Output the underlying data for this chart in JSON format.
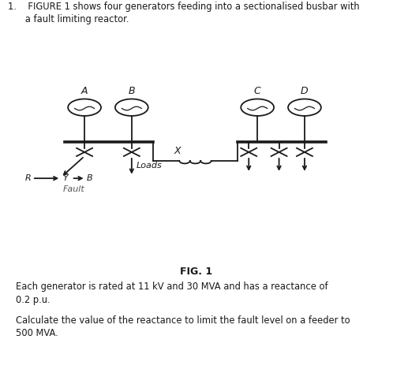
{
  "title": "FIG. 1",
  "line1": "1.    FIGURE 1 shows four generators feeding into a sectionalised busbar with",
  "line2": "      a fault limiting reactor.",
  "bottom_text1": "Each generator is rated at 11 kV and 30 MVA and has a reactance of",
  "bottom_text2": "0.2 p.u.",
  "bottom_text3": "Calculate the value of the reactance to limit the fault level on a feeder to",
  "bottom_text4": "500 MVA.",
  "gen_labels": [
    "A",
    "B",
    "C",
    "D"
  ],
  "fault_label": "Fault",
  "loads_label": "Loads",
  "reactor_label": "X",
  "background": "#ffffff",
  "line_color": "#1a1a1a",
  "text_color": "#1a1a1a",
  "blue_color": "#1a3a6b",
  "fig1_color": "#1a1a1a"
}
